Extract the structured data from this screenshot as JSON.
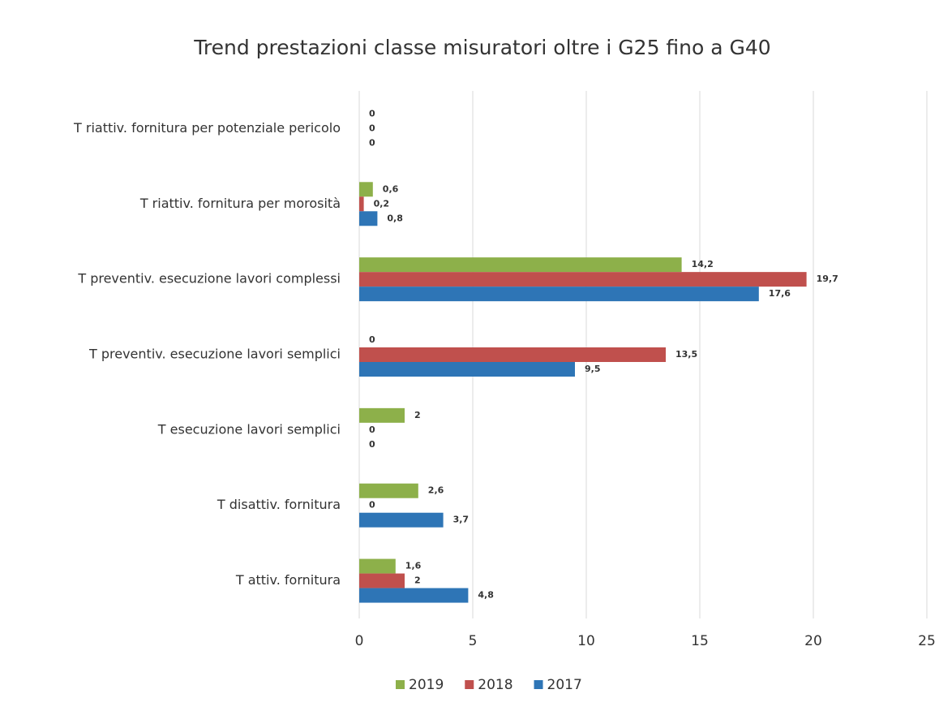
{
  "chart_data": {
    "type": "hbar",
    "title": "Trend prestazioni classe misuratori oltre i G25 fino a G40",
    "categories": [
      "T riattiv. fornitura per potenziale pericolo",
      "T riattiv. fornitura per morosità",
      "T preventiv. esecuzione lavori complessi",
      "T preventiv. esecuzione lavori semplici",
      "T esecuzione lavori semplici",
      "T disattiv. fornitura",
      "T attiv. fornitura"
    ],
    "series": [
      {
        "name": "2019",
        "color": "#8db04a",
        "values": [
          0,
          0.6,
          14.2,
          0,
          2,
          2.6,
          1.6
        ],
        "value_labels": [
          "0",
          "0,6",
          "14,2",
          "0",
          "2",
          "2,6",
          "1,6"
        ]
      },
      {
        "name": "2018",
        "color": "#c0504d",
        "values": [
          0,
          0.2,
          19.7,
          13.5,
          0,
          0,
          2
        ],
        "value_labels": [
          "0",
          "0,2",
          "19,7",
          "13,5",
          "0",
          "0",
          "2"
        ]
      },
      {
        "name": "2017",
        "color": "#2e75b6",
        "values": [
          0,
          0.8,
          17.6,
          9.5,
          0,
          3.7,
          4.8
        ],
        "value_labels": [
          "0",
          "0,8",
          "17,6",
          "9,5",
          "0",
          "3,7",
          "4,8"
        ]
      }
    ],
    "xlim": [
      0,
      25
    ],
    "xticks": [
      0,
      5,
      10,
      15,
      20,
      25
    ],
    "grid": true,
    "legend": "bottom"
  }
}
